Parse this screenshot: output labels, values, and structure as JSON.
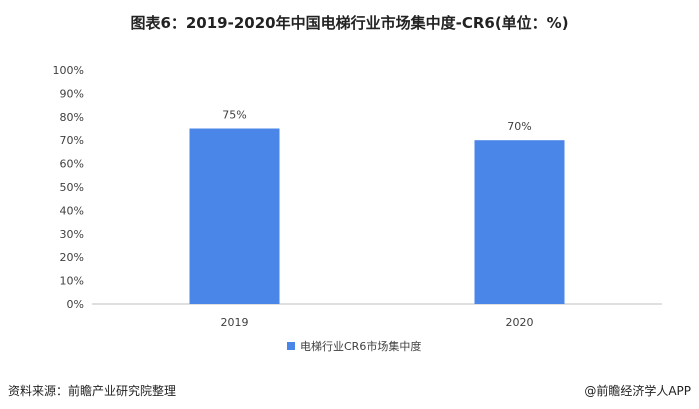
{
  "title": "图表6：2019-2020年中国电梯行业市场集中度-CR6(单位：%)",
  "footer": {
    "source": "资料来源：前瞻产业研究院整理",
    "brand": "@前瞻经济学人APP"
  },
  "chart_data": {
    "type": "bar",
    "title": "图表6：2019-2020年中国电梯行业市场集中度-CR6(单位：%)",
    "categories": [
      "2019",
      "2020"
    ],
    "series": [
      {
        "name": "电梯行业CR6市场集中度",
        "values": [
          75,
          70
        ],
        "labels": [
          "75%",
          "70%"
        ],
        "color": "#4a86e8"
      }
    ],
    "ylim": [
      0,
      100
    ],
    "yticks": [
      "0%",
      "10%",
      "20%",
      "30%",
      "40%",
      "50%",
      "60%",
      "70%",
      "80%",
      "90%",
      "100%"
    ],
    "xlabel": "",
    "ylabel": "",
    "grid": false,
    "legend": "bottom"
  }
}
